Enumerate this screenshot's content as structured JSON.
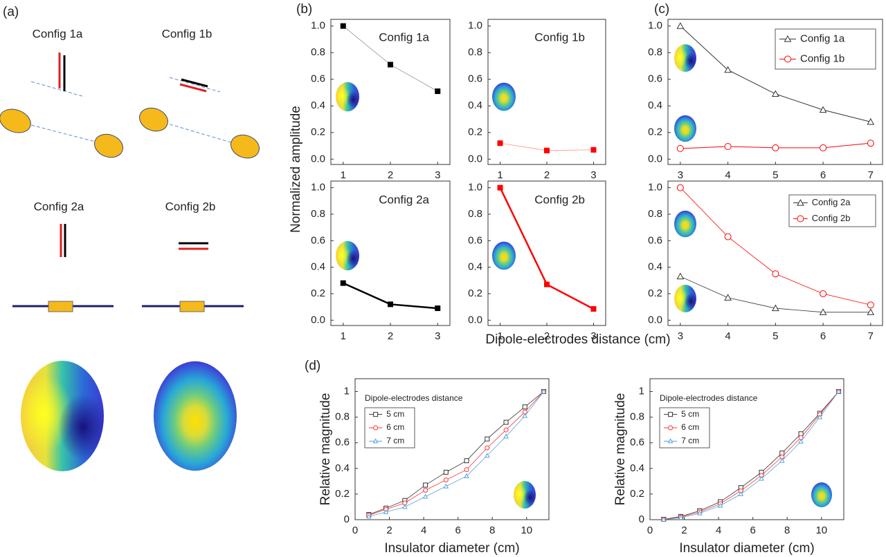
{
  "figure": {
    "panel_labels": [
      "(a)",
      "(b)",
      "(c)",
      "(d)"
    ],
    "y_label": "Normalized amplitude",
    "x_label": "Dipole-electrodes distance (cm)"
  },
  "diagram": {
    "labels": [
      "Config 1a",
      "Config 1b",
      "Config 2a",
      "Config 2b"
    ]
  },
  "chart_data": [
    {
      "type": "line",
      "title": "Config 1a",
      "x": [
        1,
        2,
        3
      ],
      "xlim": [
        0.74,
        3.26
      ],
      "xticks": [
        1,
        2,
        3
      ],
      "ylim": [
        -0.04,
        1.05
      ],
      "yticks": [
        {
          "value": 0,
          "label": "0.0"
        },
        0.2,
        0.4,
        0.6,
        0.8,
        {
          "value": 1,
          "label": "1.0"
        }
      ],
      "series": [
        {
          "name": "Config 1a",
          "color": "#000000",
          "marker": "filled-square",
          "values": [
            1.0,
            0.71,
            0.51
          ]
        }
      ]
    },
    {
      "type": "line",
      "title": "Config 1b",
      "x": [
        1,
        2,
        3
      ],
      "xlim": [
        0.74,
        3.26
      ],
      "xticks": [
        1,
        2,
        3
      ],
      "ylim": [
        -0.04,
        1.05
      ],
      "yticks": [
        {
          "value": 0,
          "label": "0.0"
        },
        0.2,
        0.4,
        0.6,
        0.8,
        {
          "value": 1,
          "label": "1.0"
        }
      ],
      "series": [
        {
          "name": "Config 1b",
          "color": "#ff0000",
          "marker": "filled-square",
          "values": [
            0.12,
            0.065,
            0.07
          ]
        }
      ]
    },
    {
      "type": "line",
      "title": "Config 2a",
      "x": [
        1,
        2,
        3
      ],
      "xlim": [
        0.74,
        3.26
      ],
      "xticks": [
        1,
        2,
        3
      ],
      "ylim": [
        -0.04,
        1.05
      ],
      "yticks": [
        {
          "value": 0,
          "label": "0.0"
        },
        0.2,
        0.4,
        0.6,
        0.8,
        {
          "value": 1,
          "label": "1.0"
        }
      ],
      "series": [
        {
          "name": "Config 2a",
          "color": "#000000",
          "marker": "filled-square",
          "values": [
            0.28,
            0.12,
            0.09
          ]
        }
      ]
    },
    {
      "type": "line",
      "title": "Config 2b",
      "x": [
        1,
        2,
        3
      ],
      "xlim": [
        0.74,
        3.26
      ],
      "xticks": [
        1,
        2,
        3
      ],
      "ylim": [
        -0.04,
        1.05
      ],
      "yticks": [
        {
          "value": 0,
          "label": "0.0"
        },
        0.2,
        0.4,
        0.6,
        0.8,
        {
          "value": 1,
          "label": "1.0"
        }
      ],
      "series": [
        {
          "name": "Config 2b",
          "color": "#ff0000",
          "marker": "filled-square",
          "values": [
            1.0,
            0.27,
            0.085
          ]
        }
      ]
    },
    {
      "type": "line",
      "x": [
        3,
        4,
        5,
        6,
        7
      ],
      "xlim": [
        2.74,
        7.25
      ],
      "xticks": [
        3,
        4,
        5,
        6,
        7
      ],
      "ylim": [
        -0.04,
        1.05
      ],
      "yticks": [
        {
          "value": 0,
          "label": "0.0"
        },
        0.2,
        0.4,
        0.6,
        0.8,
        {
          "value": 1,
          "label": "1.0"
        }
      ],
      "legend": "top-right",
      "series": [
        {
          "name": "Config 1a",
          "color": "#333333",
          "marker": "triangle",
          "values": [
            1.0,
            0.67,
            0.49,
            0.37,
            0.28
          ]
        },
        {
          "name": "Config 1b",
          "color": "#ff0000",
          "marker": "circle",
          "values": [
            0.08,
            0.095,
            0.085,
            0.085,
            0.12
          ]
        }
      ]
    },
    {
      "type": "line",
      "x": [
        3,
        4,
        5,
        6,
        7
      ],
      "xlim": [
        2.74,
        7.25
      ],
      "xticks": [
        3,
        4,
        5,
        6,
        7
      ],
      "ylim": [
        -0.04,
        1.05
      ],
      "yticks": [
        {
          "value": 0,
          "label": "0.0"
        },
        0.2,
        0.4,
        0.6,
        0.8,
        {
          "value": 1,
          "label": "1.0"
        }
      ],
      "legend": "top-right",
      "series": [
        {
          "name": "Config 2a",
          "color": "#333333",
          "marker": "triangle",
          "values": [
            0.33,
            0.17,
            0.09,
            0.06,
            0.06
          ]
        },
        {
          "name": "Config 2b",
          "color": "#ff0000",
          "marker": "circle",
          "values": [
            1.0,
            0.63,
            0.35,
            0.2,
            0.115
          ]
        }
      ]
    },
    {
      "type": "line",
      "x_label": "Insulator diameter (cm)",
      "y_label": "Relative magnitude",
      "legend_title": "Dipole-electrodes distance",
      "legend": "top-left",
      "x": [
        0.8,
        1.8,
        2.9,
        4.1,
        5.3,
        6.5,
        7.7,
        8.8,
        9.9,
        11
      ],
      "xlim": [
        0,
        11.3
      ],
      "xticks": [
        0,
        2,
        4,
        6,
        8,
        10
      ],
      "ylim": [
        0,
        1.1
      ],
      "yticks": [
        0,
        0.2,
        0.4,
        0.6,
        0.8,
        1
      ],
      "series": [
        {
          "name": "5 cm",
          "color": "#333333",
          "marker": "square",
          "values": [
            0.04,
            0.09,
            0.15,
            0.27,
            0.37,
            0.46,
            0.63,
            0.76,
            0.88,
            1.0
          ]
        },
        {
          "name": "6 cm",
          "color": "#ff3333",
          "marker": "circle",
          "values": [
            0.035,
            0.08,
            0.13,
            0.23,
            0.31,
            0.39,
            0.56,
            0.7,
            0.84,
            1.0
          ]
        },
        {
          "name": "7 cm",
          "color": "#4fa3e0",
          "marker": "triangle",
          "values": [
            0.025,
            0.06,
            0.1,
            0.18,
            0.26,
            0.34,
            0.5,
            0.65,
            0.81,
            1.0
          ]
        }
      ]
    },
    {
      "type": "line",
      "x_label": "Insulator diameter (cm)",
      "y_label": "Relative magnitude",
      "legend_title": "Dipole-electrodes distance",
      "legend": "top-left",
      "x": [
        0.8,
        1.8,
        2.9,
        4.1,
        5.3,
        6.5,
        7.7,
        8.8,
        9.9,
        11
      ],
      "xlim": [
        0,
        11.3
      ],
      "xticks": [
        0,
        2,
        4,
        6,
        8,
        10
      ],
      "ylim": [
        0,
        1.1
      ],
      "yticks": [
        0,
        0.2,
        0.4,
        0.6,
        0.8,
        1
      ],
      "series": [
        {
          "name": "5 cm",
          "color": "#333333",
          "marker": "square",
          "values": [
            0.003,
            0.025,
            0.07,
            0.14,
            0.25,
            0.37,
            0.52,
            0.67,
            0.83,
            1.0
          ]
        },
        {
          "name": "6 cm",
          "color": "#ff3333",
          "marker": "circle",
          "values": [
            0.002,
            0.02,
            0.06,
            0.125,
            0.225,
            0.345,
            0.49,
            0.64,
            0.82,
            1.0
          ]
        },
        {
          "name": "7 cm",
          "color": "#4fa3e0",
          "marker": "triangle",
          "values": [
            0.001,
            0.015,
            0.05,
            0.11,
            0.2,
            0.32,
            0.46,
            0.61,
            0.8,
            1.0
          ]
        }
      ]
    }
  ]
}
